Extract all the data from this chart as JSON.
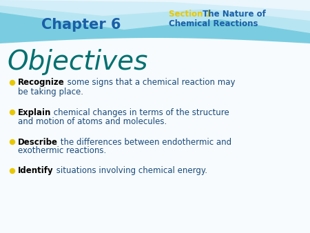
{
  "bg_color": "#ffffff",
  "body_bg": "#f7fbfd",
  "header_top_color": "#7dd4e8",
  "header_mid_color": "#b8e4f0",
  "chapter_text": "Chapter 6",
  "chapter_color": "#1a5fa8",
  "section_label": "Section 1",
  "section_label_color": "#e8c800",
  "section_line1": " The Nature of",
  "section_line2": "Chemical Reactions",
  "section_title_color": "#1a5fa8",
  "slide_title": "Objectives",
  "slide_title_color": "#007070",
  "bullet_color": "#e8c800",
  "bullet_items": [
    {
      "bold": "Recognize",
      "line1": " some signs that a chemical reaction may",
      "line2": "be taking place."
    },
    {
      "bold": "Explain",
      "line1": " chemical changes in terms of the structure",
      "line2": "and motion of atoms and molecules."
    },
    {
      "bold": "Describe",
      "line1": " the differences between endothermic and",
      "line2": "exothermic reactions."
    },
    {
      "bold": "Identify",
      "line1": " situations involving chemical energy.",
      "line2": ""
    }
  ],
  "text_color": "#1a4a7a",
  "bold_color": "#000000",
  "figsize": [
    4.5,
    3.38
  ],
  "dpi": 100
}
